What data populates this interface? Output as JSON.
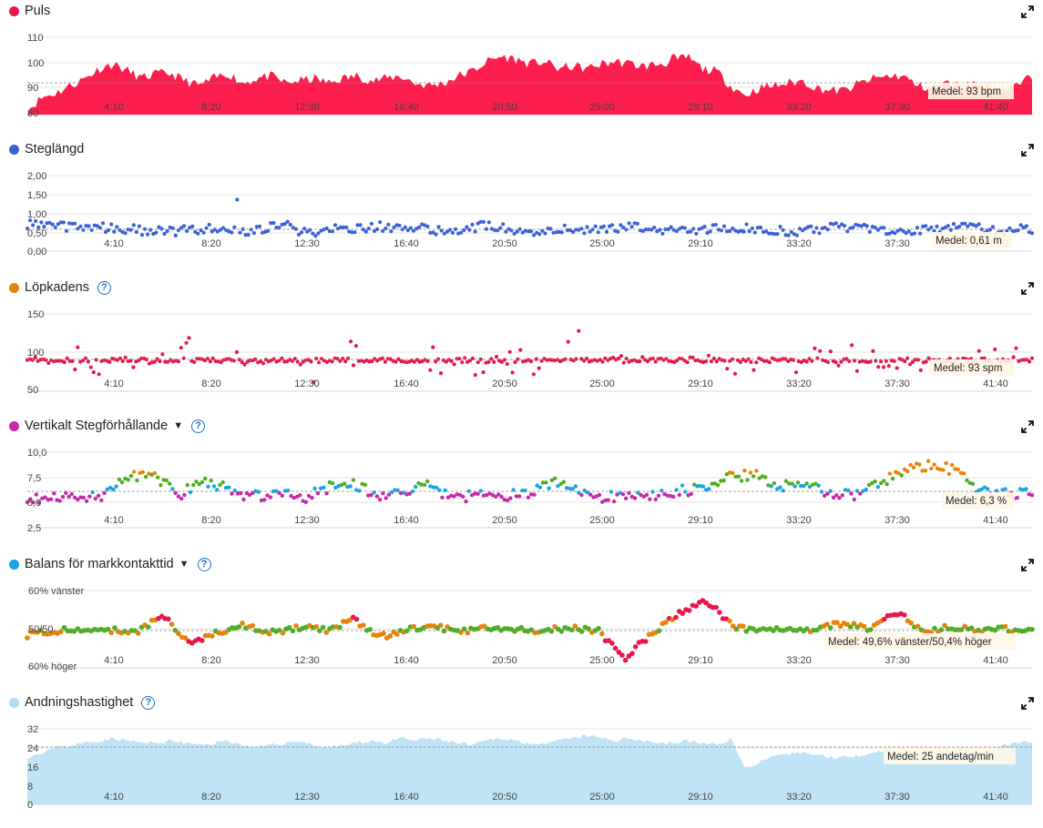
{
  "x_ticks": [
    "4:10",
    "8:20",
    "12:30",
    "16:40",
    "20:50",
    "25:00",
    "29:10",
    "33:20",
    "37:30",
    "41:40"
  ],
  "panels": [
    {
      "id": "puls",
      "title": "Puls",
      "dot_color": "#e8174a",
      "dropdown": false,
      "help": false,
      "icons": [
        "expand-icon"
      ],
      "y_ticks": [
        "110",
        "100",
        "90",
        "80"
      ],
      "medel": "Medel: 93 bpm"
    },
    {
      "id": "steglangd",
      "title": "Steglängd",
      "dot_color": "#3b5fd9",
      "dropdown": false,
      "help": false,
      "icons": [
        "expand-icon"
      ],
      "y_ticks": [
        "2,00",
        "1,50",
        "1,00",
        "0,50",
        "0,00"
      ],
      "medel": "Medel: 0,61 m"
    },
    {
      "id": "lopkadens",
      "title": "Löpkadens",
      "dot_color": "#e8830a",
      "dropdown": false,
      "help": true,
      "icons": [
        "expand-icon",
        "help-icon"
      ],
      "y_ticks": [
        "150",
        "100",
        "50"
      ],
      "medel": "Medel: 93 spm"
    },
    {
      "id": "vertikalt",
      "title": "Vertikalt Stegförhållande",
      "dot_color": "#c62aa9",
      "dropdown": true,
      "help": true,
      "icons": [
        "expand-icon",
        "help-icon",
        "caret-down-icon"
      ],
      "y_ticks": [
        "10,0",
        "7,5",
        "5,0",
        "2,5"
      ],
      "medel": "Medel: 6,3 %"
    },
    {
      "id": "balans",
      "title": "Balans för markkontakttid",
      "dot_color": "#16a6e0",
      "dropdown": true,
      "help": true,
      "icons": [
        "expand-icon",
        "help-icon",
        "caret-down-icon"
      ],
      "y_ticks": [
        "60% vänster",
        "50/50",
        "60% höger"
      ],
      "medel": "Medel: 49,6% vänster/50,4% höger"
    },
    {
      "id": "andning",
      "title": "Andningshastighet",
      "dot_color": "#aedcf3",
      "dropdown": false,
      "help": true,
      "icons": [
        "expand-icon",
        "help-icon"
      ],
      "y_ticks": [
        "32",
        "24",
        "16",
        "8",
        "0"
      ],
      "medel": "Medel: 25 andetag/min"
    }
  ],
  "colors": {
    "puls_fill": "#fc1f4d",
    "steg_dot": "#3b5fd9",
    "kadens_dot": "#e8174a",
    "vert_magenta": "#c62aa9",
    "vert_blue": "#16a6e0",
    "vert_green": "#4caf1e",
    "vert_orange": "#e8830a",
    "bal_red": "#e8174a",
    "bal_orange": "#e8830a",
    "bal_green": "#4caf1e",
    "andning_fill": "#bfe4f7",
    "gridline": "#e6e6e6",
    "medel_line": "#888888"
  },
  "chart_data": [
    {
      "type": "area",
      "title": "Puls",
      "unit": "bpm",
      "ylim": [
        80,
        112
      ],
      "mean": 93,
      "x_ticks": [
        "4:10",
        "8:20",
        "12:30",
        "16:40",
        "20:50",
        "25:00",
        "29:10",
        "33:20",
        "37:30",
        "41:40"
      ],
      "x_minutes": [
        0,
        2,
        4,
        6,
        8,
        10,
        12,
        14,
        16,
        18,
        20,
        22,
        24,
        26,
        28,
        30,
        32,
        34,
        36,
        38,
        40,
        42,
        44,
        46,
        48,
        50,
        52,
        54,
        56,
        58,
        60,
        62,
        64,
        66,
        68,
        70,
        72,
        74,
        76,
        78,
        80,
        82,
        84,
        86,
        88,
        90,
        92,
        94,
        96,
        98,
        100,
        102,
        104,
        106,
        108,
        110,
        112,
        114,
        116,
        118,
        120,
        122,
        124,
        126,
        128,
        130,
        132,
        134,
        136,
        138,
        140
      ],
      "series": [
        {
          "values": [
            82,
            87,
            89,
            92,
            95,
            99,
            101,
            98,
            95,
            97,
            97,
            94,
            92,
            95,
            97,
            93,
            95,
            96,
            93,
            94,
            95,
            93,
            95,
            96,
            94,
            95,
            96,
            93,
            92,
            93,
            96,
            98,
            102,
            104,
            103,
            101,
            102,
            99,
            100,
            99,
            101,
            102,
            101,
            100,
            101,
            102,
            104,
            99,
            98,
            92,
            88,
            91,
            92,
            93,
            94,
            91,
            90,
            90,
            93,
            95,
            96,
            96,
            92,
            91,
            93,
            92,
            93,
            91,
            90,
            92,
            96
          ]
        }
      ]
    },
    {
      "type": "scatter",
      "title": "Steglängd",
      "unit": "m",
      "ylim": [
        0,
        2.2
      ],
      "mean": 0.61,
      "series": [
        {
          "values": [
            0.8,
            0.75,
            0.7,
            0.72,
            0.65,
            0.6,
            0.55,
            0.62,
            0.7,
            0.58,
            0.64,
            0.75,
            0.5,
            0.62,
            0.68,
            0.72,
            0.6,
            0.66,
            0.58,
            0.7,
            0.74,
            0.62,
            0.55,
            0.65,
            0.6,
            0.68,
            0.72,
            0.64,
            0.58,
            0.62,
            0.7,
            0.66,
            0.6,
            0.57,
            0.64,
            0.7,
            0.68,
            0.62,
            0.58,
            0.66,
            0.72,
            0.65,
            0.6,
            0.64
          ]
        }
      ]
    },
    {
      "type": "scatter",
      "title": "Löpkadens",
      "unit": "spm",
      "ylim": [
        50,
        160
      ],
      "mean": 93,
      "series": [
        {
          "values": [
            95,
            93,
            96,
            92,
            88,
            90,
            95,
            110,
            85,
            92,
            96,
            94,
            80,
            97,
            105,
            92,
            90,
            93,
            96,
            88,
            94,
            92,
            95,
            120,
            90,
            93,
            97,
            92,
            94,
            95,
            91,
            93,
            96,
            92,
            94,
            98,
            92,
            90,
            95,
            93,
            96,
            92,
            94
          ]
        }
      ]
    },
    {
      "type": "scatter",
      "title": "Vertikalt Stegförhållande",
      "unit": "%",
      "ylim": [
        2.5,
        10.5
      ],
      "mean": 6.3,
      "series": [
        {
          "values": [
            5.8,
            5.6,
            6.0,
            5.7,
            7.8,
            8.2,
            5.9,
            7.5,
            6.5,
            5.8,
            6.2,
            5.5,
            6.8,
            7.2,
            5.9,
            6.4,
            7.0,
            5.6,
            6.1,
            5.8,
            6.3,
            7.3,
            6.2,
            5.7,
            6.0,
            5.9,
            6.4,
            6.6,
            7.8,
            8.1,
            6.9,
            7.4,
            6.1,
            5.8,
            7.2,
            8.8,
            9.2,
            8.4,
            6.3,
            6.0,
            6.2
          ]
        }
      ]
    },
    {
      "type": "scatter",
      "title": "Balans för markkontakttid",
      "unit": "% vänster",
      "ylim": [
        40,
        60
      ],
      "mean": 49.6,
      "series": [
        {
          "values": [
            48.5,
            49.5,
            50.2,
            49.8,
            49.0,
            53.5,
            46.5,
            49.0,
            51.0,
            49.2,
            50.5,
            49.8,
            52.5,
            48.0,
            49.8,
            50.5,
            49.5,
            50.2,
            50.0,
            49.6,
            50.3,
            49.8,
            42.5,
            49.0,
            54.0,
            57.5,
            50.5,
            49.5,
            50.0,
            49.8,
            51.5,
            50.2,
            54.5,
            49.4,
            50.6,
            49.8,
            50.0,
            49.5
          ]
        }
      ]
    },
    {
      "type": "area",
      "title": "Andningshastighet",
      "unit": "andetag/min",
      "ylim": [
        0,
        32
      ],
      "mean": 25,
      "series": [
        {
          "values": [
            20,
            22,
            24,
            25,
            26,
            27,
            28,
            27,
            26,
            26,
            27,
            26,
            25,
            26,
            27,
            25,
            24,
            25,
            26,
            27,
            25,
            24,
            25,
            26,
            27,
            26,
            28,
            27,
            28,
            27,
            26,
            25,
            27,
            28,
            27,
            26,
            25,
            27,
            28,
            29,
            28,
            27,
            28,
            27,
            26,
            26,
            27,
            26,
            25,
            28,
            15,
            18,
            20,
            21,
            22,
            21,
            20,
            20,
            21,
            22,
            23,
            22,
            21,
            22,
            22,
            23,
            22,
            22,
            25,
            26,
            27
          ]
        }
      ]
    }
  ]
}
